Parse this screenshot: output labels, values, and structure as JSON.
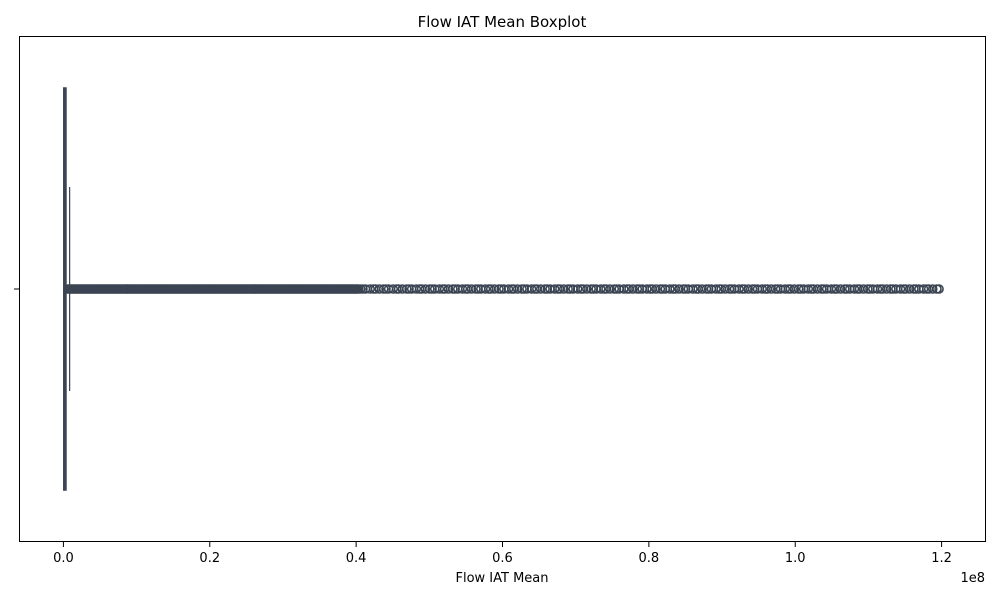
{
  "chart_data": {
    "type": "boxplot",
    "title": "Flow IAT Mean Boxplot",
    "xlabel": "Flow IAT Mean",
    "ylabel": "",
    "axis_offset_label": "1e8",
    "x_scale_multiplier": 100000000,
    "xlim": [
      -0.06,
      1.26
    ],
    "x_ticks": [
      0.0,
      0.2,
      0.4,
      0.6,
      0.8,
      1.0,
      1.2
    ],
    "x_tick_labels": [
      "0.0",
      "0.2",
      "0.4",
      "0.6",
      "0.8",
      "1.0",
      "1.2"
    ],
    "grid": false,
    "color": "#3b4452",
    "box": {
      "q1": 0.0005,
      "median": 0.0012,
      "q3": 0.0035,
      "whisker_low": 0.0,
      "whisker_high": 0.0085
    },
    "outlier_segments": [
      {
        "from": 0.006,
        "to": 0.405,
        "density": "continuous"
      },
      {
        "from": 0.405,
        "to": 1.2,
        "density": "sparse"
      }
    ]
  }
}
